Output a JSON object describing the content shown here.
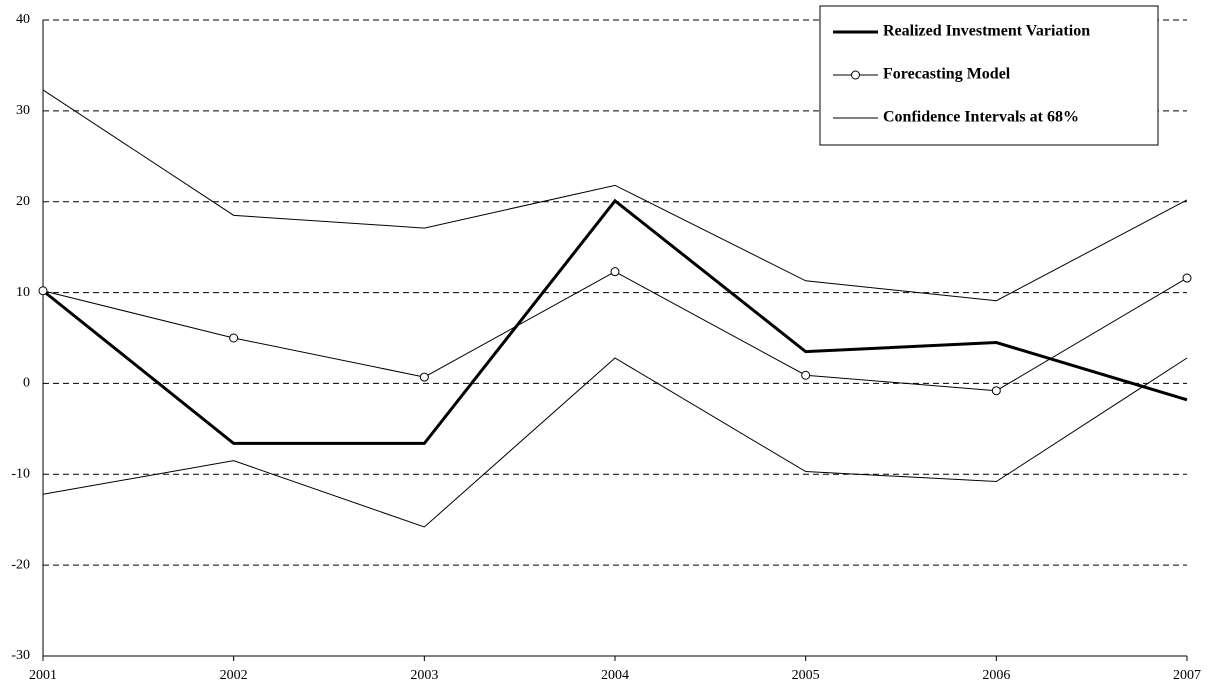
{
  "chart_data": {
    "type": "line",
    "categories": [
      "2001",
      "2002",
      "2003",
      "2004",
      "2005",
      "2006",
      "2007"
    ],
    "series": [
      {
        "name": "Realized Investment Variation",
        "color": "#000000",
        "values": [
          10.2,
          -6.6,
          -6.6,
          20.1,
          3.5,
          4.5,
          -1.8
        ]
      },
      {
        "name": "Forecasting Model",
        "color": "#000000",
        "values": [
          10.2,
          5.0,
          0.7,
          12.3,
          0.9,
          -0.8,
          11.6
        ]
      },
      {
        "name": "Confidence Intervals at 68%",
        "color": "#000000",
        "values": [
          32.3,
          18.5,
          17.1,
          21.8,
          11.3,
          9.1,
          20.2
        ],
        "lower": [
          -12.2,
          -8.5,
          -15.8,
          2.8,
          -9.7,
          -10.8,
          2.8
        ]
      }
    ],
    "ylim": [
      -30,
      40
    ],
    "yticks": [
      -30,
      -20,
      -10,
      0,
      10,
      20,
      30,
      40
    ],
    "grid": true,
    "legend": "top-right"
  }
}
